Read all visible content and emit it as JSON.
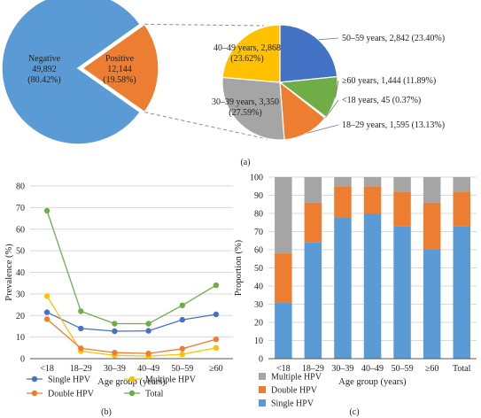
{
  "colors": {
    "blue": "#5b9bd5",
    "orange": "#ed7d31",
    "gray": "#a5a5a5",
    "gold": "#ffc000",
    "navy": "#4472c4",
    "green": "#70ad47",
    "darkblue": "#3d62b3",
    "grid": "#d9d9d9",
    "axis": "#555555"
  },
  "panel_labels": {
    "a": "(a)",
    "b": "(b)",
    "c": "(c)"
  },
  "chart_data": [
    {
      "id": "a-main",
      "type": "pie",
      "slices": [
        {
          "label": "Negative",
          "count_text": "49,892",
          "pct_text": "(80.42%)",
          "value": 49892,
          "color": "#5b9bd5"
        },
        {
          "label": "Positive",
          "count_text": "12,144",
          "pct_text": "(19.58%)",
          "value": 12144,
          "color": "#ed7d31"
        }
      ]
    },
    {
      "id": "a-detail",
      "type": "pie",
      "slices": [
        {
          "label": "50–59 years, 2,842 (23.40%)",
          "line1": "50–59 years, 2,842 (23.40%)",
          "value": 23.4,
          "color": "#4472c4"
        },
        {
          "label": "≥60 years, 1,444 (11.89%)",
          "line1": "≥60 years, 1,444 (11.89%)",
          "value": 11.89,
          "color": "#70ad47"
        },
        {
          "label": "<18 years, 45 (0.37%)",
          "line1": "<18 years, 45 (0.37%)",
          "value": 0.37,
          "color": "#5b9bd5"
        },
        {
          "label": "18–29 years, 1,595 (13.13%)",
          "line1": "18–29 years, 1,595 (13.13%)",
          "value": 13.13,
          "color": "#ed7d31"
        },
        {
          "label": "30–39 years, 3,350 (27.59%)",
          "line1": "30–39 years, 3,350",
          "line2": "(27.59%)",
          "value": 27.59,
          "color": "#a5a5a5"
        },
        {
          "label": "40–49 years, 2,868 (23.62%)",
          "line1": "40–49 years, 2,868",
          "line2": "(23.62%)",
          "value": 23.62,
          "color": "#ffc000"
        }
      ]
    },
    {
      "id": "b",
      "type": "line",
      "categories": [
        "<18",
        "18–29",
        "30–39",
        "40–49",
        "50–59",
        "≥60"
      ],
      "xlabel": "Age group (years)",
      "ylabel": "Prevalence (%)",
      "ylim": [
        0,
        80
      ],
      "yticks": [
        0,
        10,
        20,
        30,
        40,
        50,
        60,
        70,
        80
      ],
      "grid": true,
      "legend_position": "bottom",
      "series": [
        {
          "name": "Single HPV",
          "color": "#4472c4",
          "values": [
            21.5,
            14.0,
            12.7,
            12.9,
            18.0,
            20.5
          ]
        },
        {
          "name": "Multiple HPV",
          "color": "#ffc000",
          "values": [
            29.0,
            3.5,
            1.5,
            1.2,
            2.0,
            5.0
          ]
        },
        {
          "name": "Double HPV",
          "color": "#ed7d31",
          "values": [
            18.3,
            4.8,
            2.8,
            2.4,
            4.6,
            9.0
          ]
        },
        {
          "name": "Total",
          "color": "#70ad47",
          "values": [
            68.5,
            22.0,
            16.2,
            16.2,
            24.7,
            34.0
          ]
        }
      ]
    },
    {
      "id": "c",
      "type": "bar",
      "stacked": true,
      "categories": [
        "<18",
        "18–29",
        "30–39",
        "40–49",
        "50–59",
        "≥60",
        "Total"
      ],
      "xlabel": "Age group (years)",
      "ylabel": "Proportion (%)",
      "ylim": [
        0,
        100
      ],
      "yticks": [
        0,
        10,
        20,
        30,
        40,
        50,
        60,
        70,
        80,
        90,
        100
      ],
      "grid": true,
      "legend_position": "bottom",
      "series": [
        {
          "name": "Single HPV",
          "color": "#5b9bd5",
          "values": [
            31,
            64,
            78,
            80,
            73,
            60,
            73
          ]
        },
        {
          "name": "Double HPV",
          "color": "#ed7d31",
          "values": [
            27,
            22,
            17,
            15,
            19,
            26,
            19
          ]
        },
        {
          "name": "Multiple HPV",
          "color": "#a5a5a5",
          "values": [
            42,
            14,
            5,
            5,
            8,
            14,
            8
          ]
        }
      ],
      "legend_order": [
        "Multiple HPV",
        "Double HPV",
        "Single HPV"
      ]
    }
  ]
}
